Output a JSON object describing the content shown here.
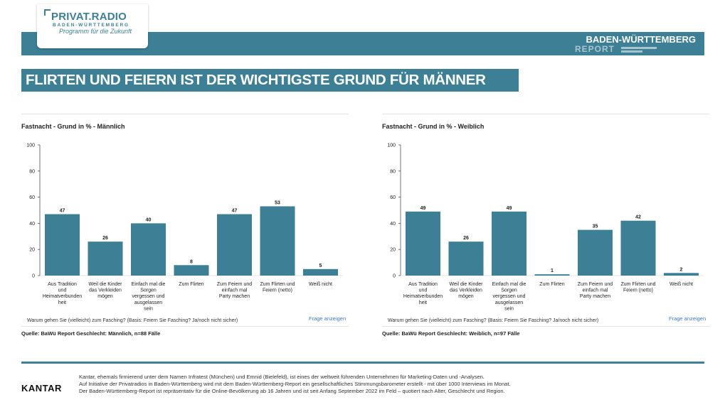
{
  "logo": {
    "name": "PRIVAT.RADIO",
    "region": "BADEN-WÜRTTEMBERG",
    "tagline": "Programm für die Zukunft"
  },
  "report_brand": {
    "title": "BADEN-WÜRTTEMBERG",
    "subtitle": "REPORT"
  },
  "headline": "FLIRTEN UND FEIERN IST DER WICHTIGSTE GRUND FÜR MÄNNER",
  "accent_color": "#3d7f95",
  "panels": [
    {
      "question": "Warum gehen Sie (vielleicht) zum Fasching? (Basis: Feiern Sie Fasching? Ja/noch nicht sicher)",
      "link": "Frage anzeigen",
      "source": "Quelle: BaWü Report Geschlecht: Männlich, n=88 Fälle"
    },
    {
      "question": "Warum gehen Sie (vielleicht) zum Fasching? (Basis: Feiern Sie Fasching? Ja/noch nicht sicher)",
      "link": "Frage anzeigen",
      "source": "Quelle: BaWü Report Geschlecht: Weiblich, n=97 Fälle"
    }
  ],
  "chart_data": [
    {
      "type": "bar",
      "title": "Fastnacht - Grund in % - Männlich",
      "categories": [
        [
          "Aus Tradition",
          "und",
          "Heimatverbunden",
          "heit"
        ],
        [
          "Weil die Kinder",
          "das Verkleiden",
          "mögen"
        ],
        [
          "Einfach mal die",
          "Sorgen",
          "vergessen und",
          "ausgelassen",
          "sein"
        ],
        [
          "Zum Flirten"
        ],
        [
          "Zum Feiern und",
          "einfach mal",
          "Party machen"
        ],
        [
          "Zum Flirten und",
          "Feiern (netto)"
        ],
        [
          "Weiß nicht"
        ]
      ],
      "values": [
        47,
        26,
        40,
        8,
        47,
        53,
        5
      ],
      "ylim": [
        0,
        100
      ],
      "yticks": [
        0,
        20,
        40,
        60,
        80,
        100
      ],
      "color": "#3d7f95"
    },
    {
      "type": "bar",
      "title": "Fastnacht - Grund in % - Weiblich",
      "categories": [
        [
          "Aus Tradition",
          "und",
          "Heimatverbunden",
          "heit"
        ],
        [
          "Weil die Kinder",
          "das Verkleiden",
          "mögen"
        ],
        [
          "Einfach mal die",
          "Sorgen",
          "vergessen und",
          "ausgelassen",
          "sein"
        ],
        [
          "Zum Flirten"
        ],
        [
          "Zum Feiern und",
          "einfach mal",
          "Party machen"
        ],
        [
          "Zum Flirten und",
          "Feiern (netto)"
        ],
        [
          "Weiß nicht"
        ]
      ],
      "values": [
        49,
        26,
        49,
        1,
        35,
        42,
        2
      ],
      "ylim": [
        0,
        100
      ],
      "yticks": [
        0,
        20,
        40,
        60,
        80,
        100
      ],
      "color": "#3d7f95"
    }
  ],
  "footer": {
    "brand": "KANTAR",
    "line1": "Kantar, ehemals firmierend unter dem Namen Infratest (München) und Emnid (Bielefeld), ist eines der weltweit führenden Unternehmen für Marketing-Daten und -Analysen.",
    "line2": "Auf Initiative der Privatradios in Baden-Württemberg wird mit dem Baden-Württemberg-Report ein gesellschaftliches Stimmungsbarometer erstellt - mit über 1000 Interviews im Monat.",
    "line3": "Der Baden-Württemberg-Report ist repräsentativ für die Online-Bevölkerung ab 16 Jahren und ist seit Anfang September 2022 im Feld – quotiert nach Alter, Geschlecht und Region."
  }
}
